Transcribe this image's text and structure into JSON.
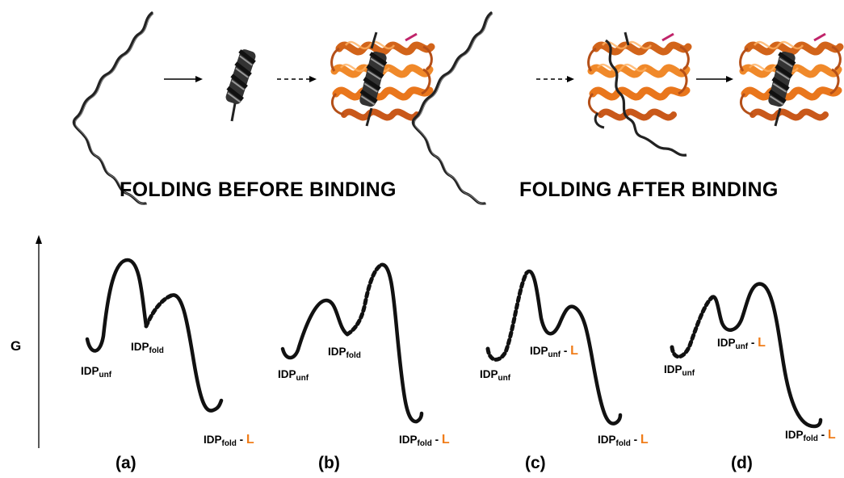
{
  "headings": {
    "left": "FOLDING BEFORE BINDING",
    "right": "FOLDING AFTER BINDING"
  },
  "axis": {
    "label": "G"
  },
  "colors": {
    "ligand": "#f07d1a",
    "partner_protein": "#e8761a",
    "idp": "#222222"
  },
  "panels": [
    {
      "label": "(a)",
      "states": [
        {
          "base": "IDP",
          "sub": "unf",
          "ligand": ""
        },
        {
          "base": "IDP",
          "sub": "fold",
          "ligand": ""
        },
        {
          "base": "IDP",
          "sub": "fold",
          "ligand": "L"
        }
      ]
    },
    {
      "label": "(b)",
      "states": [
        {
          "base": "IDP",
          "sub": "unf",
          "ligand": ""
        },
        {
          "base": "IDP",
          "sub": "fold",
          "ligand": ""
        },
        {
          "base": "IDP",
          "sub": "fold",
          "ligand": "L"
        }
      ]
    },
    {
      "label": "(c)",
      "states": [
        {
          "base": "IDP",
          "sub": "unf",
          "ligand": ""
        },
        {
          "base": "IDP",
          "sub": "unf",
          "ligand": "L"
        },
        {
          "base": "IDP",
          "sub": "fold",
          "ligand": "L"
        }
      ]
    },
    {
      "label": "(d)",
      "states": [
        {
          "base": "IDP",
          "sub": "unf",
          "ligand": ""
        },
        {
          "base": "IDP",
          "sub": "unf",
          "ligand": "L"
        },
        {
          "base": "IDP",
          "sub": "fold",
          "ligand": "L"
        }
      ]
    }
  ]
}
